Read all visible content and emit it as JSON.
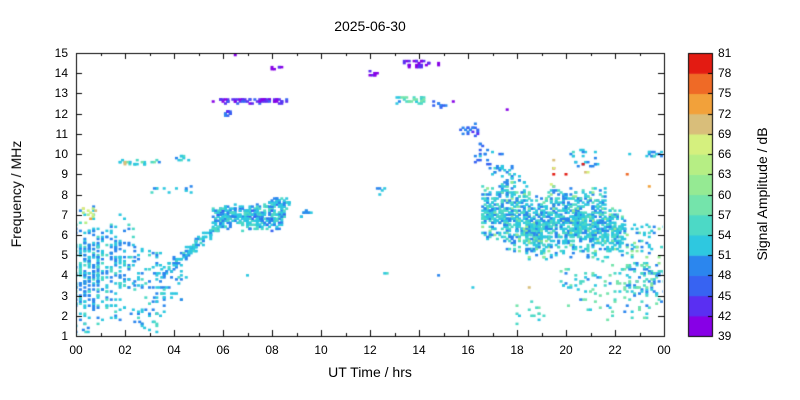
{
  "chart_data": {
    "type": "scatter",
    "title": "2025-06-30",
    "xlabel": "UT Time / hrs",
    "ylabel": "Frequency / MHz",
    "xlim": [
      0,
      24
    ],
    "ylim": [
      1,
      15
    ],
    "grid": false,
    "x_ticks": {
      "values": [
        0,
        2,
        4,
        6,
        8,
        10,
        12,
        14,
        16,
        18,
        20,
        22,
        24
      ],
      "labels": [
        "00",
        "02",
        "04",
        "06",
        "08",
        "10",
        "12",
        "14",
        "16",
        "18",
        "20",
        "22",
        "00"
      ],
      "minor_values": [
        1,
        3,
        5,
        7,
        9,
        11,
        13,
        15,
        17,
        19,
        21,
        23
      ]
    },
    "y_ticks": {
      "values": [
        1,
        2,
        3,
        4,
        5,
        6,
        7,
        8,
        9,
        10,
        11,
        12,
        13,
        14,
        15
      ],
      "labels": [
        "1",
        "2",
        "3",
        "4",
        "5",
        "6",
        "7",
        "8",
        "9",
        "10",
        "11",
        "12",
        "13",
        "14",
        "15"
      ]
    },
    "colorbar": {
      "label": "Signal Amplitude / dB",
      "min": 39,
      "max": 81,
      "step": 3,
      "tick_labels": [
        "39",
        "42",
        "45",
        "48",
        "51",
        "54",
        "57",
        "60",
        "63",
        "66",
        "69",
        "72",
        "75",
        "78",
        "81"
      ],
      "colors": [
        "#8700e6",
        "#5a2ff2",
        "#3763f2",
        "#2b86ee",
        "#2ec8e0",
        "#4cd9c6",
        "#74e4ab",
        "#95ea93",
        "#b6ee84",
        "#d5f07e",
        "#d9be7a",
        "#f2a13a",
        "#ef6a26",
        "#e31b12"
      ]
    },
    "point_quantization": {
      "t_step": 0.1,
      "f_step": 0.1
    },
    "seed": 20250630,
    "clusters": [
      {
        "t": [
          0.0,
          1.0
        ],
        "f": [
          1.2,
          7.6
        ],
        "n": 230,
        "amp": [
          48,
          56
        ],
        "dist": "center",
        "qt": 0.18
      },
      {
        "t": [
          0.0,
          0.6
        ],
        "f": [
          1.0,
          1.4
        ],
        "n": 6,
        "amp": [
          49,
          55
        ]
      },
      {
        "t": [
          0.3,
          0.9
        ],
        "f": [
          6.6,
          7.3
        ],
        "n": 12,
        "amp": [
          62,
          74
        ]
      },
      {
        "t": [
          1.0,
          2.3
        ],
        "f": [
          1.5,
          7.2
        ],
        "n": 150,
        "amp": [
          48,
          56
        ],
        "dist": "center",
        "qt": 0.18
      },
      {
        "t": [
          2.3,
          3.6
        ],
        "f": [
          1.4,
          5.4
        ],
        "n": 70,
        "amp": [
          48,
          56
        ],
        "qt": 0.15
      },
      {
        "t": [
          3.0,
          4.6
        ],
        "f": [
          2.6,
          4.6
        ],
        "n": 40,
        "amp": [
          48,
          55
        ]
      },
      {
        "t": [
          2.4,
          3.4
        ],
        "f": [
          1.1,
          1.8
        ],
        "n": 6,
        "amp": [
          49,
          55
        ]
      },
      {
        "t": [
          1.7,
          3.5
        ],
        "f": [
          9.45,
          9.7
        ],
        "n": 22,
        "amp": [
          48,
          58
        ]
      },
      {
        "t": [
          2.0,
          2.15
        ],
        "f": [
          9.5,
          9.65
        ],
        "n": 2,
        "amp": [
          66,
          72
        ]
      },
      {
        "t": [
          4.0,
          4.7
        ],
        "f": [
          9.6,
          9.95
        ],
        "n": 8,
        "amp": [
          48,
          56
        ]
      },
      {
        "t": [
          3.1,
          4.8
        ],
        "f": [
          8.1,
          8.5
        ],
        "n": 12,
        "amp": [
          48,
          55
        ]
      },
      {
        "t": [
          3.7,
          6.2
        ],
        "f": [
          4.2,
          6.9
        ],
        "n": 130,
        "amp": [
          49,
          55
        ],
        "mode": "trace",
        "jt": 0.15,
        "jf": 0.22
      },
      {
        "t": [
          5.6,
          8.6
        ],
        "f": [
          6.1,
          7.6
        ],
        "n": 330,
        "amp": [
          49,
          56
        ],
        "amp2": [
          45,
          48
        ],
        "p2": 0.1,
        "dist": "center"
      },
      {
        "t": [
          7.9,
          8.7
        ],
        "f": [
          7.3,
          7.9
        ],
        "n": 40,
        "amp": [
          49,
          55
        ],
        "dist": "center"
      },
      {
        "t": [
          9.1,
          9.6
        ],
        "f": [
          6.9,
          7.3
        ],
        "n": 10,
        "amp": [
          49,
          54
        ]
      },
      {
        "t": [
          7.0,
          7.1
        ],
        "f": [
          4.0,
          4.15
        ],
        "n": 1,
        "amp": [
          50,
          54
        ]
      },
      {
        "t": [
          5.55,
          8.7
        ],
        "f": [
          12.5,
          12.75
        ],
        "n": 60,
        "amp": [
          39,
          48
        ]
      },
      {
        "t": [
          6.05,
          6.35
        ],
        "f": [
          11.85,
          12.15
        ],
        "n": 12,
        "amp": [
          44,
          49
        ]
      },
      {
        "t": [
          6.5,
          6.55
        ],
        "f": [
          14.9,
          15.0
        ],
        "n": 1,
        "amp": [
          40,
          40
        ]
      },
      {
        "t": [
          7.95,
          8.45
        ],
        "f": [
          14.2,
          14.45
        ],
        "n": 6,
        "amp": [
          39,
          44
        ]
      },
      {
        "t": [
          12.0,
          12.35
        ],
        "f": [
          13.85,
          14.1
        ],
        "n": 8,
        "amp": [
          39,
          45
        ]
      },
      {
        "t": [
          13.3,
          14.6
        ],
        "f": [
          14.3,
          14.65
        ],
        "n": 26,
        "amp": [
          39,
          44
        ]
      },
      {
        "t": [
          14.7,
          14.85
        ],
        "f": [
          14.4,
          14.55
        ],
        "n": 2,
        "amp": [
          40,
          43
        ]
      },
      {
        "t": [
          13.05,
          14.3
        ],
        "f": [
          12.5,
          12.85
        ],
        "n": 26,
        "amp": [
          50,
          60
        ]
      },
      {
        "t": [
          14.5,
          15.1
        ],
        "f": [
          12.3,
          12.6
        ],
        "n": 9,
        "amp": [
          45,
          49
        ]
      },
      {
        "t": [
          15.3,
          15.45
        ],
        "f": [
          12.45,
          12.6
        ],
        "n": 1,
        "amp": [
          41,
          41
        ]
      },
      {
        "t": [
          12.15,
          12.6
        ],
        "f": [
          7.9,
          8.35
        ],
        "n": 5,
        "amp": [
          49,
          54
        ]
      },
      {
        "t": [
          12.55,
          12.75
        ],
        "f": [
          4.1,
          4.3
        ],
        "n": 2,
        "amp": [
          50,
          56
        ]
      },
      {
        "t": [
          14.75,
          14.9
        ],
        "f": [
          3.95,
          4.1
        ],
        "n": 1,
        "amp": [
          50,
          54
        ]
      },
      {
        "t": [
          16.1,
          16.25
        ],
        "f": [
          3.3,
          3.45
        ],
        "n": 1,
        "amp": [
          52,
          56
        ]
      },
      {
        "t": [
          15.7,
          16.45
        ],
        "f": [
          10.9,
          11.5
        ],
        "n": 18,
        "amp": [
          44,
          51
        ]
      },
      {
        "t": [
          16.4,
          17.1
        ],
        "f": [
          10.6,
          9.1
        ],
        "n": 10,
        "amp": [
          45,
          51
        ],
        "mode": "trace",
        "jt": 0.08,
        "jf": 0.12
      },
      {
        "t": [
          16.1,
          16.6
        ],
        "f": [
          9.6,
          10.1
        ],
        "n": 6,
        "amp": [
          46,
          52
        ]
      },
      {
        "t": [
          16.8,
          17.6
        ],
        "f": [
          9.9,
          10.4
        ],
        "n": 4,
        "amp": [
          46,
          52
        ]
      },
      {
        "t": [
          17.45,
          17.6
        ],
        "f": [
          12.15,
          12.3
        ],
        "n": 1,
        "amp": [
          40,
          40
        ]
      },
      {
        "t": [
          16.6,
          17.4
        ],
        "f": [
          5.6,
          8.6
        ],
        "n": 160,
        "amp": [
          49,
          56
        ],
        "amp2": [
          57,
          62
        ],
        "p2": 0.1,
        "dist": "center"
      },
      {
        "t": [
          17.4,
          18.4
        ],
        "f": [
          5.0,
          9.0
        ],
        "n": 260,
        "amp": [
          49,
          56
        ],
        "amp2": [
          57,
          63
        ],
        "p2": 0.12,
        "dist": "center"
      },
      {
        "t": [
          18.4,
          19.4
        ],
        "f": [
          4.6,
          8.2
        ],
        "n": 300,
        "amp": [
          49,
          56
        ],
        "amp2": [
          57,
          63
        ],
        "p2": 0.12,
        "dist": "center"
      },
      {
        "t": [
          19.4,
          20.6
        ],
        "f": [
          4.8,
          8.6
        ],
        "n": 300,
        "amp": [
          49,
          56
        ],
        "amp2": [
          57,
          63
        ],
        "p2": 0.1,
        "dist": "center"
      },
      {
        "t": [
          20.6,
          21.6
        ],
        "f": [
          4.6,
          8.4
        ],
        "n": 260,
        "amp": [
          49,
          56
        ],
        "amp2": [
          57,
          63
        ],
        "p2": 0.1,
        "dist": "center"
      },
      {
        "t": [
          21.6,
          22.4
        ],
        "f": [
          4.8,
          7.4
        ],
        "n": 140,
        "amp": [
          49,
          56
        ],
        "amp2": [
          57,
          62
        ],
        "p2": 0.08,
        "dist": "center"
      },
      {
        "t": [
          22.4,
          24.0
        ],
        "f": [
          3.0,
          6.5
        ],
        "n": 90,
        "amp": [
          48,
          56
        ],
        "amp2": [
          57,
          62
        ],
        "p2": 0.15
      },
      {
        "t": [
          17.0,
          18.2
        ],
        "f": [
          8.6,
          9.4
        ],
        "n": 25,
        "amp": [
          48,
          55
        ]
      },
      {
        "t": [
          20.2,
          21.3
        ],
        "f": [
          9.4,
          10.2
        ],
        "n": 22,
        "amp": [
          48,
          55
        ]
      },
      {
        "t": [
          19.4,
          21.5
        ],
        "f": [
          8.4,
          9.7
        ],
        "n": 9,
        "amp": [
          66,
          81
        ]
      },
      {
        "t": [
          22.45,
          22.6
        ],
        "f": [
          9.0,
          9.2
        ],
        "n": 1,
        "amp": [
          76,
          80
        ]
      },
      {
        "t": [
          23.3,
          23.45
        ],
        "f": [
          8.3,
          8.5
        ],
        "n": 1,
        "amp": [
          70,
          74
        ]
      },
      {
        "t": [
          17.9,
          19.2
        ],
        "f": [
          1.6,
          2.8
        ],
        "n": 14,
        "amp": [
          52,
          60
        ]
      },
      {
        "t": [
          18.5,
          18.7
        ],
        "f": [
          3.3,
          3.5
        ],
        "n": 1,
        "amp": [
          69,
          72
        ]
      },
      {
        "t": [
          19.8,
          21.5
        ],
        "f": [
          2.0,
          4.4
        ],
        "n": 40,
        "amp": [
          50,
          60
        ]
      },
      {
        "t": [
          21.5,
          24.0
        ],
        "f": [
          1.8,
          4.6
        ],
        "n": 90,
        "amp": [
          49,
          60
        ]
      },
      {
        "t": [
          23.2,
          24.0
        ],
        "f": [
          9.8,
          10.15
        ],
        "n": 14,
        "amp": [
          48,
          55
        ]
      },
      {
        "t": [
          22.55,
          22.7
        ],
        "f": [
          9.95,
          10.1
        ],
        "n": 1,
        "amp": [
          49,
          52
        ]
      }
    ]
  }
}
